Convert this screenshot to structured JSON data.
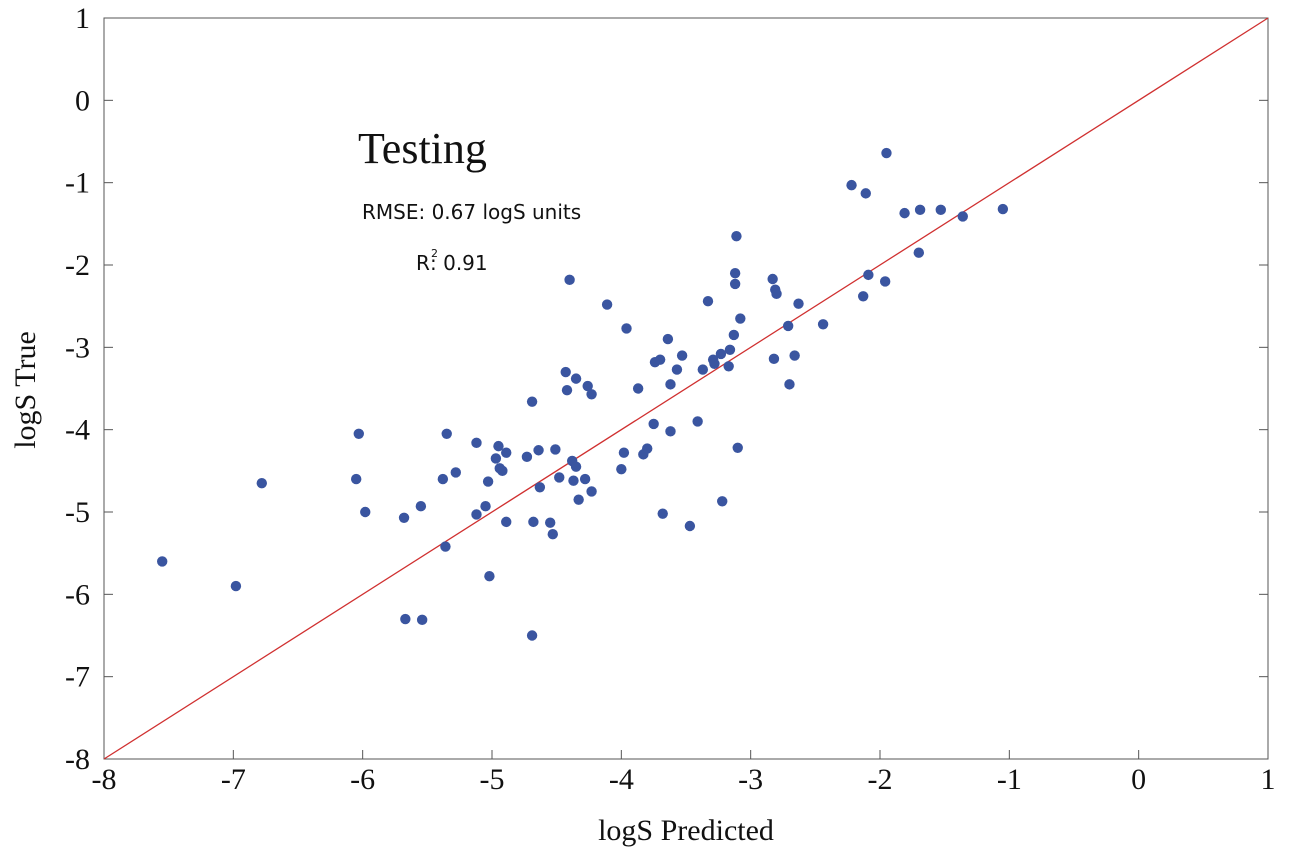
{
  "chart_data": {
    "type": "scatter",
    "title": "Testing",
    "xlabel": "logS Predicted",
    "ylabel": "logS True",
    "xlim": [
      -8,
      1
    ],
    "ylim": [
      -8,
      1
    ],
    "xticks": [
      -8,
      -7,
      -6,
      -5,
      -4,
      -3,
      -2,
      -1,
      0,
      1
    ],
    "yticks": [
      -8,
      -7,
      -6,
      -5,
      -4,
      -3,
      -2,
      -1,
      0,
      1
    ],
    "annotations": {
      "rmse": "RMSE: 0.67 logS units",
      "r2_prefix": "R",
      "r2_superscript": "2",
      "r2_value": ": 0.91"
    },
    "reference_line": {
      "from": [
        -8,
        -8
      ],
      "to": [
        1,
        1
      ],
      "color": "#d03030"
    },
    "point_color": "#3a55a0",
    "grid": false,
    "points": [
      [
        -7.55,
        -5.6
      ],
      [
        -6.98,
        -5.9
      ],
      [
        -6.78,
        -4.65
      ],
      [
        -6.03,
        -4.05
      ],
      [
        -6.05,
        -4.6
      ],
      [
        -5.98,
        -5.0
      ],
      [
        -5.68,
        -5.07
      ],
      [
        -5.67,
        -6.3
      ],
      [
        -5.55,
        -4.93
      ],
      [
        -5.54,
        -6.31
      ],
      [
        -5.38,
        -4.6
      ],
      [
        -5.35,
        -4.05
      ],
      [
        -5.36,
        -5.42
      ],
      [
        -5.28,
        -4.52
      ],
      [
        -5.12,
        -4.16
      ],
      [
        -5.12,
        -5.03
      ],
      [
        -5.05,
        -4.93
      ],
      [
        -5.03,
        -4.63
      ],
      [
        -5.02,
        -5.78
      ],
      [
        -4.97,
        -4.35
      ],
      [
        -4.95,
        -4.2
      ],
      [
        -4.94,
        -4.47
      ],
      [
        -4.92,
        -4.5
      ],
      [
        -4.89,
        -4.28
      ],
      [
        -4.89,
        -5.12
      ],
      [
        -4.73,
        -4.33
      ],
      [
        -4.69,
        -3.66
      ],
      [
        -4.68,
        -5.12
      ],
      [
        -4.69,
        -6.5
      ],
      [
        -4.64,
        -4.25
      ],
      [
        -4.63,
        -4.7
      ],
      [
        -4.55,
        -5.13
      ],
      [
        -4.53,
        -5.27
      ],
      [
        -4.51,
        -4.24
      ],
      [
        -4.48,
        -4.58
      ],
      [
        -4.43,
        -3.3
      ],
      [
        -4.42,
        -3.52
      ],
      [
        -4.4,
        -2.18
      ],
      [
        -4.38,
        -4.38
      ],
      [
        -4.37,
        -4.62
      ],
      [
        -4.35,
        -3.38
      ],
      [
        -4.35,
        -4.45
      ],
      [
        -4.33,
        -4.85
      ],
      [
        -4.28,
        -4.6
      ],
      [
        -4.26,
        -3.47
      ],
      [
        -4.23,
        -3.57
      ],
      [
        -4.23,
        -4.75
      ],
      [
        -4.11,
        -2.48
      ],
      [
        -4.0,
        -4.48
      ],
      [
        -3.98,
        -4.28
      ],
      [
        -3.96,
        -2.77
      ],
      [
        -3.87,
        -3.5
      ],
      [
        -3.83,
        -4.3
      ],
      [
        -3.8,
        -4.23
      ],
      [
        -3.75,
        -3.93
      ],
      [
        -3.74,
        -3.18
      ],
      [
        -3.7,
        -3.15
      ],
      [
        -3.68,
        -5.02
      ],
      [
        -3.64,
        -2.9
      ],
      [
        -3.62,
        -3.45
      ],
      [
        -3.62,
        -4.02
      ],
      [
        -3.57,
        -3.27
      ],
      [
        -3.53,
        -3.1
      ],
      [
        -3.47,
        -5.17
      ],
      [
        -3.41,
        -3.9
      ],
      [
        -3.37,
        -3.27
      ],
      [
        -3.33,
        -2.44
      ],
      [
        -3.29,
        -3.15
      ],
      [
        -3.28,
        -3.2
      ],
      [
        -3.23,
        -3.08
      ],
      [
        -3.22,
        -4.87
      ],
      [
        -3.17,
        -3.23
      ],
      [
        -3.16,
        -3.03
      ],
      [
        -3.13,
        -2.85
      ],
      [
        -3.12,
        -2.1
      ],
      [
        -3.12,
        -2.23
      ],
      [
        -3.11,
        -1.65
      ],
      [
        -3.1,
        -4.22
      ],
      [
        -3.08,
        -2.65
      ],
      [
        -2.83,
        -2.17
      ],
      [
        -2.82,
        -3.14
      ],
      [
        -2.81,
        -2.3
      ],
      [
        -2.8,
        -2.35
      ],
      [
        -2.71,
        -2.74
      ],
      [
        -2.7,
        -3.45
      ],
      [
        -2.66,
        -3.1
      ],
      [
        -2.63,
        -2.47
      ],
      [
        -2.44,
        -2.72
      ],
      [
        -2.22,
        -1.03
      ],
      [
        -2.13,
        -2.38
      ],
      [
        -2.11,
        -1.13
      ],
      [
        -2.09,
        -2.12
      ],
      [
        -1.96,
        -2.2
      ],
      [
        -1.95,
        -0.64
      ],
      [
        -1.81,
        -1.37
      ],
      [
        -1.7,
        -1.85
      ],
      [
        -1.69,
        -1.33
      ],
      [
        -1.53,
        -1.33
      ],
      [
        -1.36,
        -1.41
      ],
      [
        -1.05,
        -1.32
      ]
    ]
  }
}
